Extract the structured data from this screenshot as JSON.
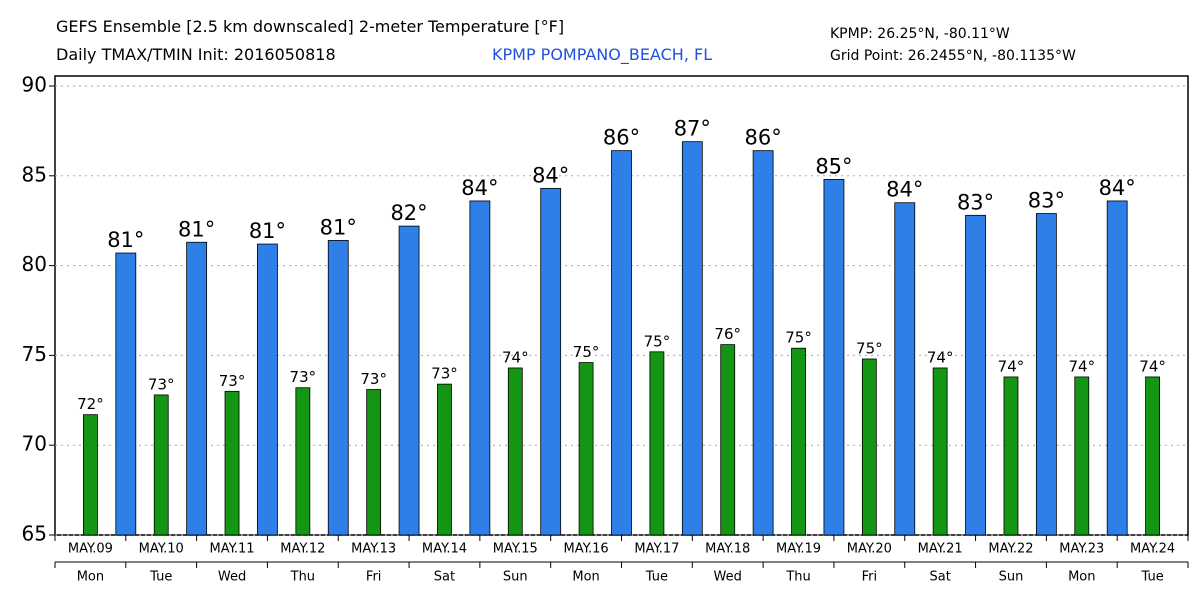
{
  "chart_data": {
    "type": "bar",
    "title": "GEFS Ensemble [2.5 km downscaled] 2-meter Temperature [°F]",
    "subtitle": "Daily TMAX/TMIN Init: 2016050818",
    "station": "KPMP POMPANO_BEACH, FL",
    "station_coords": "KPMP: 26.25°N, -80.11°W",
    "grid_point": "Grid Point: 26.2455°N, -80.1135°W",
    "categories": [
      "MAY.09",
      "MAY.10",
      "MAY.11",
      "MAY.12",
      "MAY.13",
      "MAY.14",
      "MAY.15",
      "MAY.16",
      "MAY.17",
      "MAY.18",
      "MAY.19",
      "MAY.20",
      "MAY.21",
      "MAY.22",
      "MAY.23",
      "MAY.24"
    ],
    "weekdays": [
      "Mon",
      "Tue",
      "Wed",
      "Thu",
      "Fri",
      "Sat",
      "Sun",
      "Mon",
      "Tue",
      "Wed",
      "Thu",
      "Fri",
      "Sat",
      "Sun",
      "Mon",
      "Tue"
    ],
    "series": [
      {
        "name": "TMAX",
        "color": "#2e7fe8",
        "values": [
          null,
          80.7,
          81.3,
          81.2,
          81.4,
          82.2,
          83.6,
          84.3,
          86.4,
          86.9,
          86.4,
          84.8,
          83.5,
          82.8,
          82.9,
          83.6
        ],
        "value_labels": [
          null,
          "81°",
          "81°",
          "81°",
          "81°",
          "82°",
          "84°",
          "84°",
          "86°",
          "87°",
          "86°",
          "85°",
          "84°",
          "83°",
          "83°",
          "84°"
        ]
      },
      {
        "name": "TMIN",
        "color": "#149614",
        "values": [
          71.7,
          72.8,
          73.0,
          73.2,
          73.1,
          73.4,
          74.3,
          74.6,
          75.2,
          75.6,
          75.4,
          74.8,
          74.3,
          73.8,
          73.8,
          73.8
        ],
        "value_labels": [
          "72°",
          "73°",
          "73°",
          "73°",
          "73°",
          "73°",
          "74°",
          "75°",
          "75°",
          "76°",
          "75°",
          "75°",
          "74°",
          "74°",
          "74°",
          "74°"
        ]
      }
    ],
    "ylim": [
      65,
      90
    ],
    "yticks": [
      65,
      70,
      75,
      80,
      85,
      90
    ],
    "grid": true
  }
}
